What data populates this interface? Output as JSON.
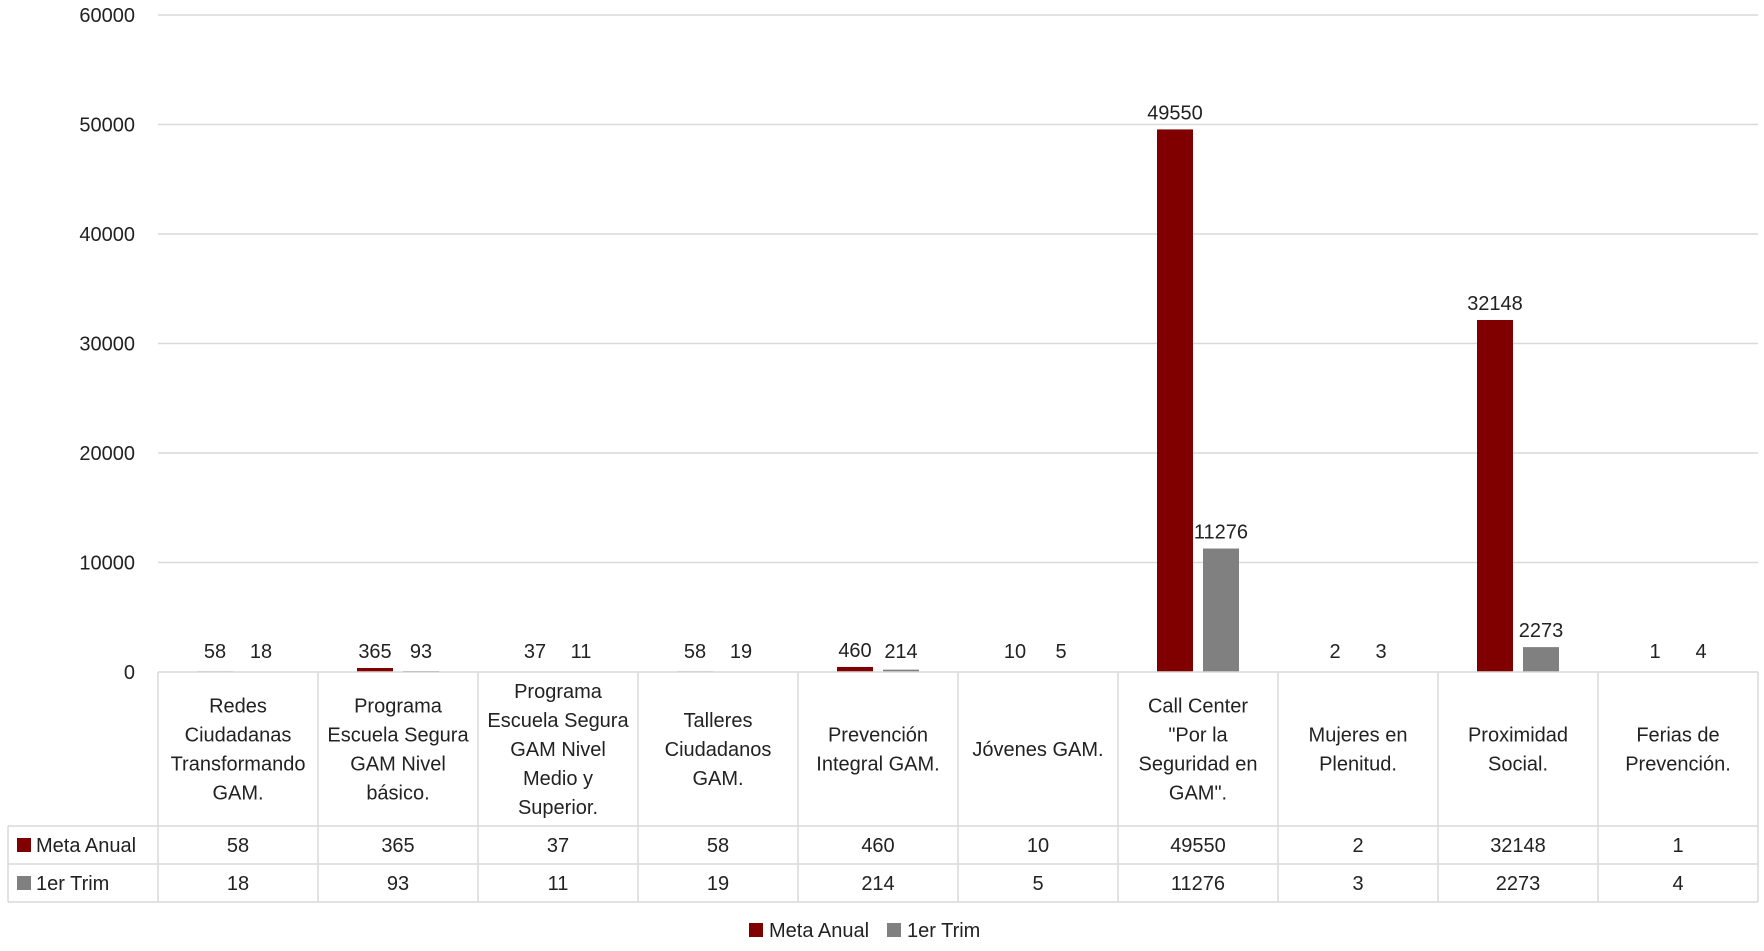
{
  "chart_data": {
    "type": "bar",
    "categories": [
      [
        "Redes",
        "Ciudadanas",
        "Transformando",
        "GAM."
      ],
      [
        "Programa",
        "Escuela Segura",
        "GAM Nivel",
        "básico."
      ],
      [
        "Programa",
        "Escuela Segura",
        "GAM Nivel",
        "Medio y",
        "Superior."
      ],
      [
        "Talleres",
        "Ciudadanos",
        "GAM."
      ],
      [
        "Prevención",
        "Integral GAM."
      ],
      [
        "Jóvenes GAM."
      ],
      [
        "Call Center",
        "\"Por la",
        "Seguridad en",
        "GAM\"."
      ],
      [
        "Mujeres en",
        "Plenitud."
      ],
      [
        "Proximidad",
        "Social."
      ],
      [
        "Ferias de",
        "Prevención."
      ]
    ],
    "series": [
      {
        "name": "Meta Anual",
        "color": "#800000",
        "values": [
          58,
          365,
          37,
          58,
          460,
          10,
          49550,
          2,
          32148,
          1
        ]
      },
      {
        "name": "1er Trim",
        "color": "#808080",
        "values": [
          18,
          93,
          11,
          19,
          214,
          5,
          11276,
          3,
          2273,
          4
        ]
      }
    ],
    "ylim": [
      0,
      60000
    ],
    "yticks": [
      "0",
      "10000",
      "20000",
      "30000",
      "40000",
      "50000",
      "60000"
    ],
    "grid": true,
    "legend": "bottom",
    "data_table": true
  }
}
